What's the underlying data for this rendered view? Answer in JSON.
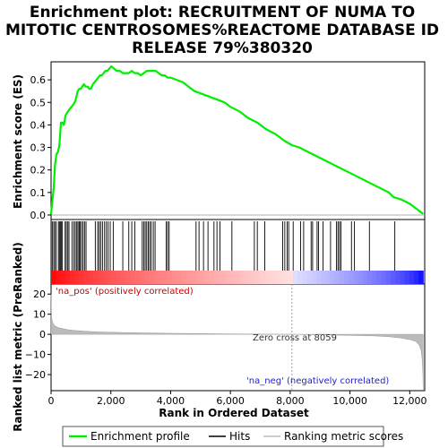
{
  "chart_data": {
    "type": "line",
    "title_lines": [
      "Enrichment plot: RECRUITMENT OF NUMA TO",
      "MITOTIC CENTROSOMES%REACTOME DATABASE ID",
      "RELEASE 79%380320"
    ],
    "xlabel": "Rank in Ordered Dataset",
    "ylabel_top": "Enrichment score (ES)",
    "ylabel_bottom": "Ranked list metric (PreRanked)",
    "xlim": [
      0,
      12500
    ],
    "x_ticks": [
      0,
      2000,
      4000,
      6000,
      8000,
      10000,
      12000
    ],
    "x_tick_labels": [
      "0",
      "2,000",
      "4,000",
      "6,000",
      "8,000",
      "10,000",
      "12,000"
    ],
    "es_ylim": [
      -0.02,
      0.68
    ],
    "es_ticks": [
      0.0,
      0.1,
      0.2,
      0.3,
      0.4,
      0.5,
      0.6
    ],
    "es_tick_labels": [
      "0.0",
      "0.1",
      "0.2",
      "0.3",
      "0.4",
      "0.5",
      "0.6"
    ],
    "metric_ylim": [
      -28,
      25
    ],
    "metric_ticks": [
      20,
      10,
      0,
      -10,
      -20
    ],
    "metric_tick_labels": [
      "20",
      "10",
      "0",
      "−10",
      "−20"
    ],
    "annotations": {
      "pos": "'na_pos' (positively correlated)",
      "neg": "'na_neg' (negatively correlated)",
      "zero": "Zero cross at 8059"
    },
    "legend": [
      "Enrichment profile",
      "Hits",
      "Ranking metric scores"
    ],
    "colors": {
      "es_line": "#00ee00",
      "hit_line": "#000000",
      "metric_fill": "#bbbbbb",
      "pos_strong": "#ff0000",
      "neg_strong": "#0000ff",
      "zero_line": "#888888"
    },
    "series": [
      {
        "name": "Enrichment profile",
        "x": [
          0,
          40,
          90,
          130,
          180,
          230,
          280,
          330,
          380,
          430,
          480,
          520,
          570,
          620,
          680,
          740,
          790,
          840,
          890,
          940,
          990,
          1040,
          1100,
          1160,
          1220,
          1280,
          1330,
          1400,
          1460,
          1520,
          1580,
          1640,
          1700,
          1760,
          1820,
          1880,
          1950,
          2020,
          2100,
          2200,
          2300,
          2400,
          2500,
          2600,
          2700,
          2800,
          2900,
          3000,
          3100,
          3200,
          3300,
          3400,
          3500,
          3600,
          3700,
          3800,
          3900,
          4000,
          4200,
          4400,
          4600,
          4800,
          5000,
          5200,
          5400,
          5600,
          5800,
          6000,
          6300,
          6600,
          6900,
          7200,
          7500,
          7800,
          8059,
          8300,
          8600,
          8900,
          9200,
          9500,
          9800,
          10100,
          10400,
          10700,
          11000,
          11300,
          11450,
          11700,
          12000,
          12300,
          12450
        ],
        "values": [
          0.0,
          0.06,
          0.12,
          0.22,
          0.27,
          0.28,
          0.31,
          0.41,
          0.41,
          0.4,
          0.44,
          0.45,
          0.46,
          0.47,
          0.48,
          0.49,
          0.5,
          0.52,
          0.55,
          0.56,
          0.56,
          0.57,
          0.58,
          0.57,
          0.57,
          0.56,
          0.56,
          0.58,
          0.59,
          0.6,
          0.61,
          0.62,
          0.62,
          0.63,
          0.64,
          0.64,
          0.65,
          0.66,
          0.65,
          0.64,
          0.64,
          0.63,
          0.63,
          0.63,
          0.64,
          0.63,
          0.63,
          0.62,
          0.63,
          0.64,
          0.64,
          0.64,
          0.64,
          0.63,
          0.62,
          0.62,
          0.61,
          0.61,
          0.6,
          0.59,
          0.57,
          0.55,
          0.54,
          0.53,
          0.52,
          0.51,
          0.5,
          0.48,
          0.46,
          0.43,
          0.41,
          0.38,
          0.36,
          0.33,
          0.31,
          0.3,
          0.28,
          0.26,
          0.24,
          0.22,
          0.2,
          0.18,
          0.16,
          0.14,
          0.12,
          0.1,
          0.08,
          0.07,
          0.05,
          0.02,
          0.005
        ]
      },
      {
        "name": "Hits",
        "x": [
          40,
          90,
          130,
          180,
          250,
          290,
          310,
          340,
          380,
          470,
          510,
          560,
          600,
          700,
          760,
          810,
          860,
          900,
          940,
          970,
          1020,
          1070,
          1120,
          1170,
          1480,
          1560,
          1610,
          1660,
          1720,
          1790,
          1850,
          1910,
          1980,
          2080,
          2400,
          2600,
          2700,
          2800,
          3050,
          3100,
          3150,
          3200,
          3250,
          3300,
          3350,
          3420,
          3480,
          3850,
          3900,
          3950,
          4850,
          4950,
          5100,
          5250,
          5450,
          5550,
          5650,
          6050,
          6800,
          6900,
          7150,
          7750,
          7820,
          7900,
          7950,
          8100,
          8350,
          8450,
          8700,
          8750,
          8900,
          8950,
          9100,
          9350,
          9550,
          9600,
          9650,
          9700,
          10050,
          10150,
          10650,
          11500
        ]
      },
      {
        "name": "Ranking metric scores",
        "x": [
          0,
          15,
          40,
          80,
          150,
          250,
          400,
          600,
          900,
          1300,
          1800,
          2400,
          3200,
          4000,
          5000,
          6000,
          7000,
          8059,
          9000,
          10000,
          10800,
          11300,
          11700,
          12000,
          12200,
          12320,
          12380,
          12420,
          12440,
          12450
        ],
        "values": [
          20,
          9,
          6.5,
          5,
          4,
          3.3,
          2.8,
          2.2,
          1.8,
          1.4,
          1.1,
          0.9,
          0.7,
          0.5,
          0.35,
          0.2,
          0.1,
          0.0,
          -0.25,
          -0.5,
          -0.8,
          -1.2,
          -1.8,
          -2.6,
          -3.5,
          -5.5,
          -8,
          -13,
          -20,
          -28
        ]
      }
    ]
  }
}
